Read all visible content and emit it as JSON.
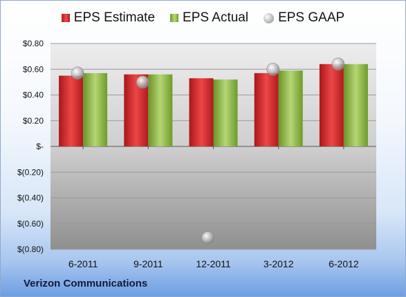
{
  "legend": {
    "estimate": "EPS Estimate",
    "actual": "EPS Actual",
    "gaap": "EPS GAAP"
  },
  "company": "Verizon Communications",
  "colors": {
    "estimate": "#d42a2a",
    "actual": "#8dba4a",
    "gaap": "#b4b4b4"
  },
  "chart_data": {
    "type": "bar",
    "categories": [
      "6-2011",
      "9-2011",
      "12-2011",
      "3-2012",
      "6-2012"
    ],
    "series": [
      {
        "name": "EPS Estimate",
        "kind": "bar",
        "values": [
          0.55,
          0.56,
          0.53,
          0.57,
          0.64
        ]
      },
      {
        "name": "EPS Actual",
        "kind": "bar",
        "values": [
          0.57,
          0.56,
          0.52,
          0.59,
          0.64
        ]
      },
      {
        "name": "EPS GAAP",
        "kind": "scatter",
        "values": [
          0.57,
          0.5,
          -0.71,
          0.6,
          0.64
        ]
      }
    ],
    "ylim": [
      -0.8,
      0.8
    ],
    "yticks": [
      0.8,
      0.6,
      0.4,
      0.2,
      0,
      -0.2,
      -0.4,
      -0.6,
      -0.8
    ],
    "ytick_labels": [
      "$0.80",
      "$0.60",
      "$0.40",
      "$0.20",
      "$-",
      "$(0.20)",
      "$(0.40)",
      "$(0.60)",
      "$(0.80)"
    ],
    "grid": true,
    "legend_position": "top"
  }
}
